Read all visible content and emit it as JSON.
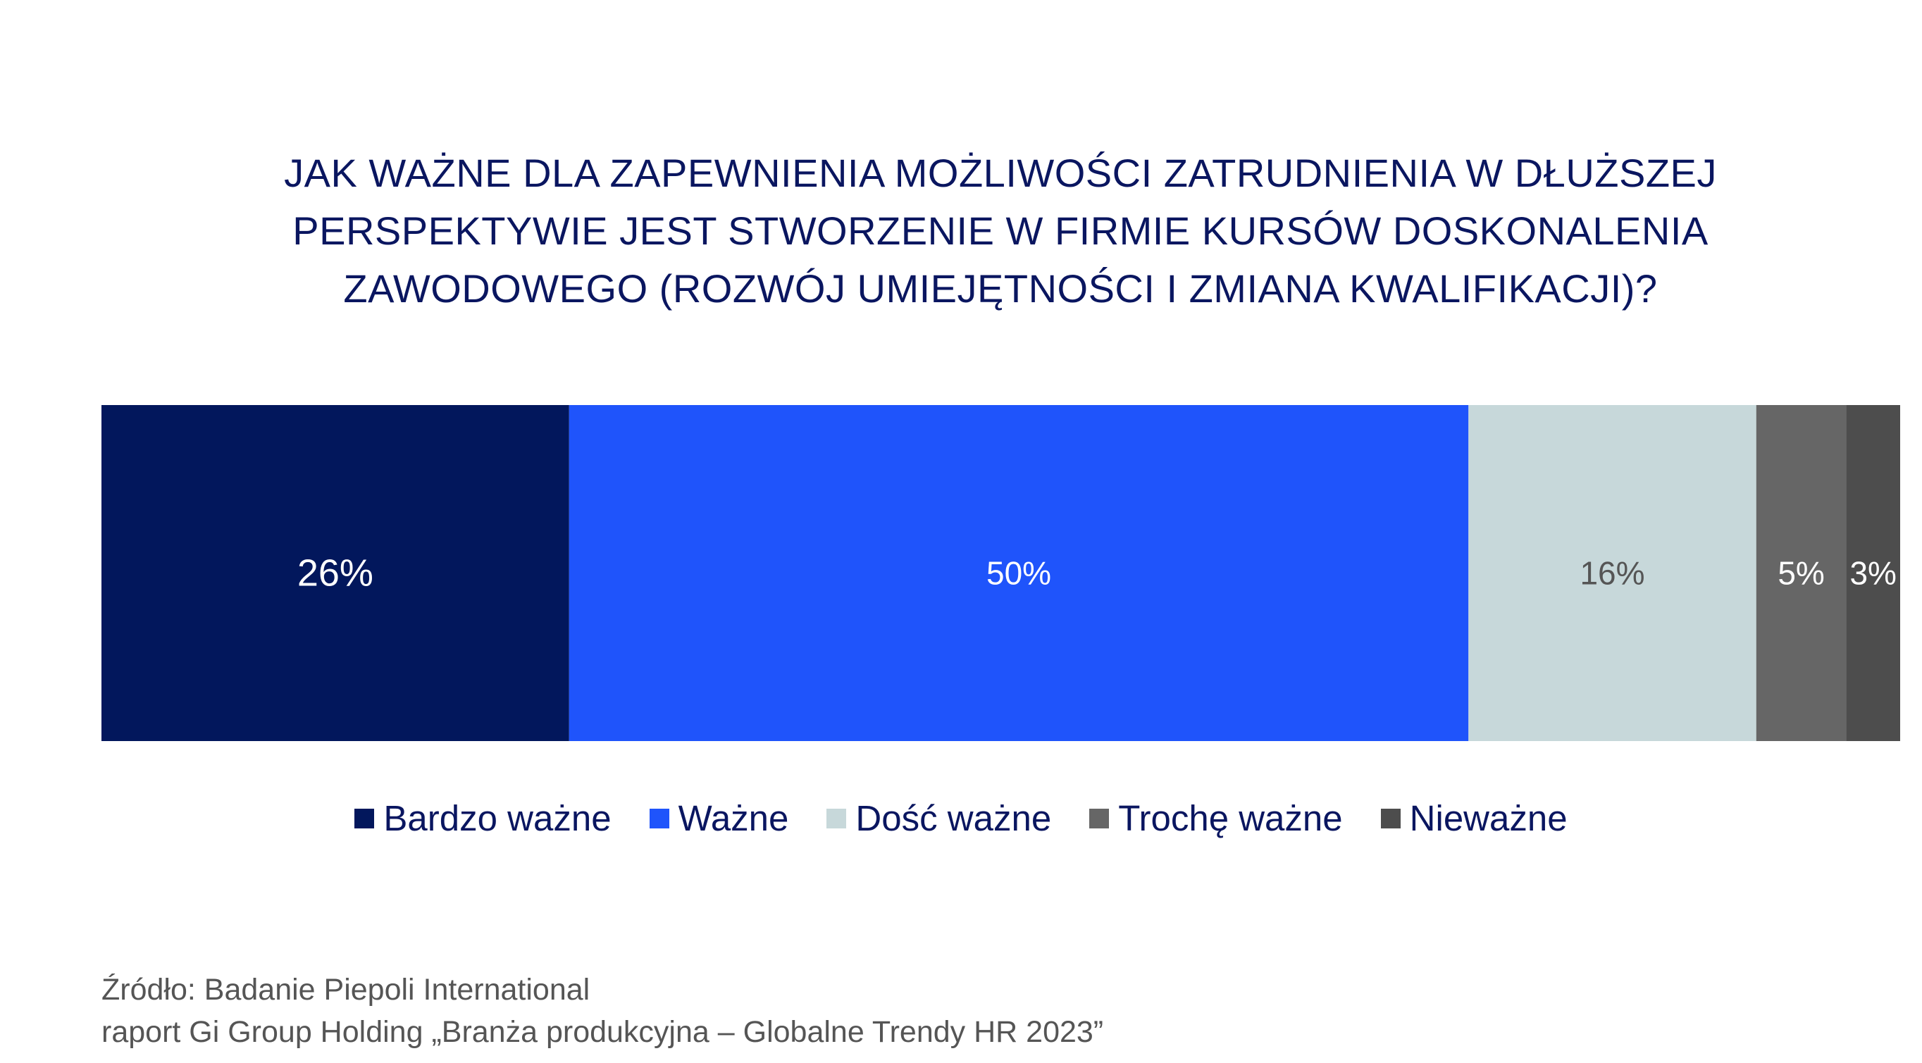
{
  "chart_data": {
    "type": "bar",
    "orientation": "horizontal-stacked-100",
    "title_lines": [
      "JAK WAŻNE DLA ZAPEWNIENIA MOŻLIWOŚCI ZATRUDNIENIA W DŁUŻSZEJ",
      "PERSPEKTYWIE JEST STWORZENIE W FIRMIE KURSÓW DOSKONALENIA",
      "ZAWODOWEGO (ROZWÓJ UMIEJĘTNOŚCI I ZMIANA KWALIFIKACJI)?"
    ],
    "series": [
      {
        "name": "Bardzo ważne",
        "value": 26,
        "label": "26%",
        "color": "#02175c",
        "label_color": "#ffffff"
      },
      {
        "name": "Ważne",
        "value": 50,
        "label": "50%",
        "color": "#1f54fb",
        "label_color": "#ffffff"
      },
      {
        "name": "Dość ważne",
        "value": 16,
        "label": "16%",
        "color": "#c7d8da",
        "label_color": "#555555"
      },
      {
        "name": "Trochę ważne",
        "value": 5,
        "label": "5%",
        "color": "#666666",
        "label_color": "#ffffff"
      },
      {
        "name": "Nieważne",
        "value": 3,
        "label": "3%",
        "color": "#4d4d4d",
        "label_color": "#ffffff"
      }
    ],
    "legend_position": "bottom",
    "grid": false
  },
  "source": {
    "line1": "Źródło: Badanie Piepoli International",
    "line2": "raport Gi Group Holding „Branża produkcyjna – Globalne Trendy HR 2023”"
  }
}
